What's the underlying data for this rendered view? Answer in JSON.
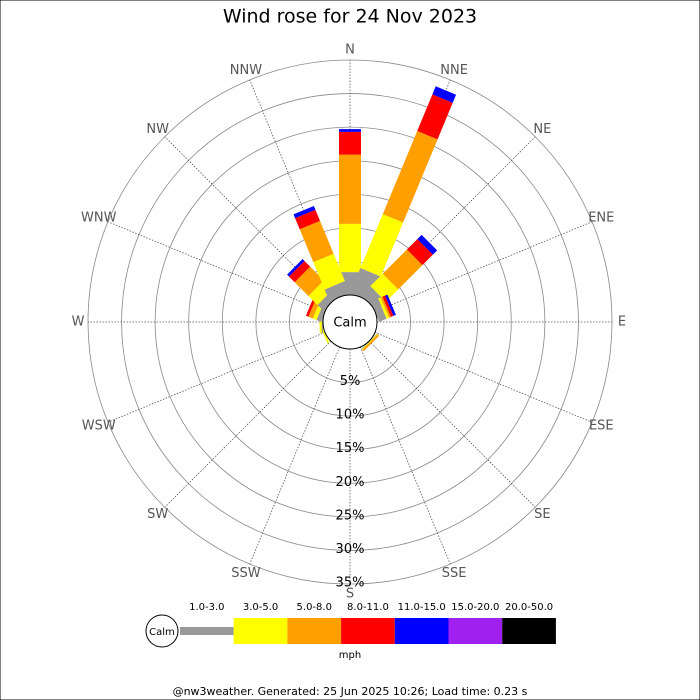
{
  "chart_data": {
    "type": "windrose",
    "title": "Wind rose for 24 Nov 2023",
    "directions": [
      "N",
      "NNE",
      "NE",
      "ENE",
      "E",
      "ESE",
      "SE",
      "SSE",
      "S",
      "SSW",
      "SW",
      "WSW",
      "W",
      "WNW",
      "NW",
      "NNW"
    ],
    "center_label": "Calm",
    "rlim": [
      0,
      35
    ],
    "rticks": [
      {
        "value": 5,
        "label": "5%"
      },
      {
        "value": 10,
        "label": "10%"
      },
      {
        "value": 15,
        "label": "15%"
      },
      {
        "value": 20,
        "label": "20%"
      },
      {
        "value": 25,
        "label": "25%"
      },
      {
        "value": 30,
        "label": "30%"
      },
      {
        "value": 35,
        "label": "35%"
      }
    ],
    "series": [
      {
        "name": "1.0-3.0",
        "color": "#999999",
        "values": [
          3.4,
          4.0,
          1.9,
          1.2,
          0,
          0,
          0.1,
          0,
          0,
          0,
          0,
          0,
          0.2,
          0.7,
          1.2,
          1.9
        ]
      },
      {
        "name": "3.0-5.0",
        "color": "#ffff00",
        "values": [
          7.2,
          8.7,
          2.6,
          0.4,
          0,
          0,
          0.1,
          0,
          0,
          0,
          0,
          0.3,
          0.3,
          0.6,
          1.9,
          4.4
        ]
      },
      {
        "name": "5.0-8.0",
        "color": "#ffa000",
        "values": [
          10.3,
          13.4,
          5.1,
          0.3,
          0,
          0,
          0.3,
          0,
          0,
          0,
          0,
          0,
          0,
          0.7,
          2.9,
          5.3
        ]
      },
      {
        "name": "8.0-11.0",
        "color": "#ff0000",
        "values": [
          3.4,
          5.9,
          2.2,
          0.4,
          0,
          0,
          0,
          0,
          0,
          0,
          0,
          0,
          0,
          0.4,
          1.2,
          1.8
        ]
      },
      {
        "name": "11.0-15.0",
        "color": "#0000ff",
        "values": [
          0.4,
          1.3,
          0.9,
          0.4,
          0,
          0,
          0,
          0,
          0,
          0,
          0,
          0,
          0,
          0,
          0.4,
          0.6
        ]
      },
      {
        "name": "15.0-20.0",
        "color": "#a020f0",
        "values": [
          0,
          0,
          0,
          0,
          0,
          0,
          0,
          0,
          0,
          0,
          0,
          0,
          0,
          0,
          0,
          0
        ]
      },
      {
        "name": "20.0-50.0",
        "color": "#000000",
        "values": [
          0,
          0,
          0,
          0,
          0,
          0,
          0,
          0,
          0,
          0,
          0,
          0,
          0,
          0,
          0,
          0
        ]
      }
    ],
    "legend_center_label": "Calm",
    "unit_label": "mph",
    "footer": "@nw3weather.  Generated: 25 Jun 2025 10:26; Load time: 0.23 s"
  }
}
